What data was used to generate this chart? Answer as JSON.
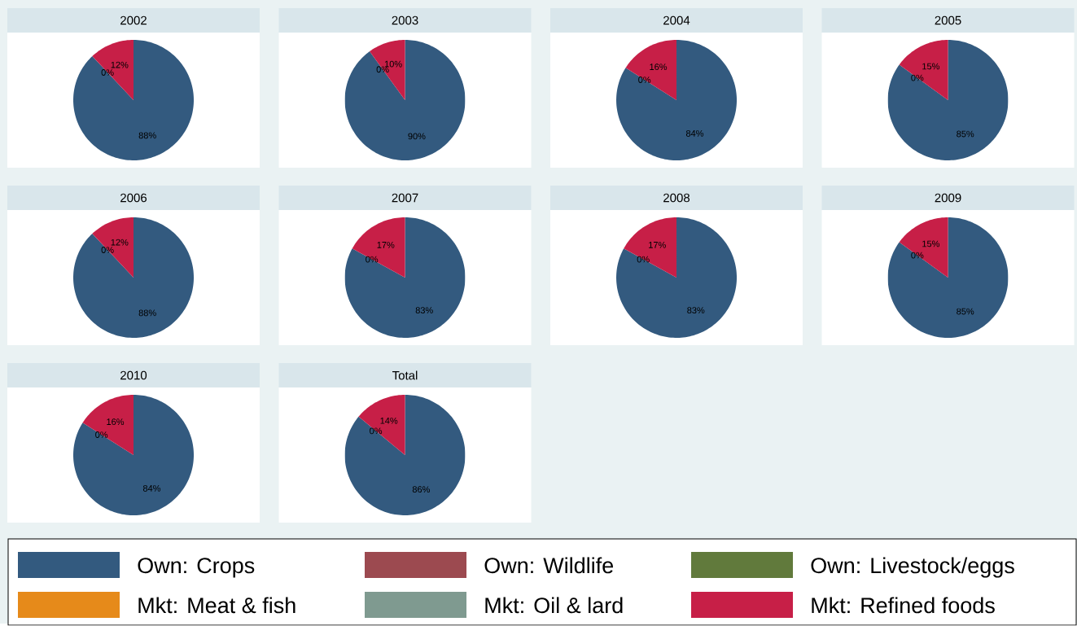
{
  "chart_data": [
    {
      "type": "pie",
      "title": "2002",
      "legend": "bottom",
      "categories": [
        "Own: Crops",
        "Own: Wildlife",
        "Own: Livestock/eggs",
        "Mkt: Meat & fish",
        "Mkt: Oil & lard",
        "Mkt: Refined foods"
      ],
      "colors": [
        "#335a7f",
        "#9c4a50",
        "#617a3c",
        "#e68a1a",
        "#7f9a90",
        "#c71f47"
      ],
      "values": [
        88,
        0,
        0,
        0,
        0,
        12
      ],
      "value_labels": [
        "88%",
        "0%",
        null,
        null,
        null,
        "12%"
      ]
    },
    {
      "type": "pie",
      "title": "2003",
      "categories": [
        null,
        null,
        null,
        null,
        null,
        null
      ],
      "colors": [
        "#335a7f",
        "#9c4a50",
        "#617a3c",
        "#e68a1a",
        "#7f9a90",
        "#c71f47"
      ],
      "values": [
        90,
        0,
        0,
        0,
        0,
        10
      ],
      "value_labels": [
        "90%",
        "0%",
        null,
        null,
        null,
        "10%"
      ]
    },
    {
      "type": "pie",
      "title": "2004",
      "categories": [
        null,
        null,
        null,
        null,
        null,
        null
      ],
      "colors": [
        "#335a7f",
        "#9c4a50",
        "#617a3c",
        "#e68a1a",
        "#7f9a90",
        "#c71f47"
      ],
      "values": [
        84,
        0,
        0,
        0,
        0,
        16
      ],
      "value_labels": [
        "84%",
        "0%",
        null,
        null,
        null,
        "16%"
      ]
    },
    {
      "type": "pie",
      "title": "2005",
      "categories": [
        null,
        null,
        null,
        null,
        null,
        null
      ],
      "colors": [
        "#335a7f",
        "#9c4a50",
        "#617a3c",
        "#e68a1a",
        "#7f9a90",
        "#c71f47"
      ],
      "values": [
        85,
        0,
        0,
        0,
        0,
        15
      ],
      "value_labels": [
        "85%",
        "0%",
        null,
        null,
        null,
        "15%"
      ]
    },
    {
      "type": "pie",
      "title": "2006",
      "categories": [
        null,
        null,
        null,
        null,
        null,
        null
      ],
      "colors": [
        "#335a7f",
        "#9c4a50",
        "#617a3c",
        "#e68a1a",
        "#7f9a90",
        "#c71f47"
      ],
      "values": [
        88,
        0,
        0,
        0,
        0,
        12
      ],
      "value_labels": [
        "88%",
        "0%",
        null,
        null,
        null,
        "12%"
      ]
    },
    {
      "type": "pie",
      "title": "2007",
      "categories": [
        null,
        null,
        null,
        null,
        null,
        null
      ],
      "colors": [
        "#335a7f",
        "#9c4a50",
        "#617a3c",
        "#e68a1a",
        "#7f9a90",
        "#c71f47"
      ],
      "values": [
        83,
        0,
        0,
        0,
        0,
        17
      ],
      "value_labels": [
        "83%",
        "0%",
        null,
        null,
        null,
        "17%"
      ]
    },
    {
      "type": "pie",
      "title": "2008",
      "categories": [
        null,
        null,
        null,
        null,
        null,
        null
      ],
      "colors": [
        "#335a7f",
        "#9c4a50",
        "#617a3c",
        "#e68a1a",
        "#7f9a90",
        "#c71f47"
      ],
      "values": [
        83,
        0,
        0,
        0,
        0,
        17
      ],
      "value_labels": [
        "83%",
        "0%",
        null,
        null,
        null,
        "17%"
      ]
    },
    {
      "type": "pie",
      "title": "2009",
      "categories": [
        null,
        null,
        null,
        null,
        null,
        null
      ],
      "colors": [
        "#335a7f",
        "#9c4a50",
        "#617a3c",
        "#e68a1a",
        "#7f9a90",
        "#c71f47"
      ],
      "values": [
        85,
        0,
        0,
        0,
        0,
        15
      ],
      "value_labels": [
        "85%",
        "0%",
        null,
        null,
        null,
        "15%"
      ]
    },
    {
      "type": "pie",
      "title": "2010",
      "categories": [
        null,
        null,
        null,
        null,
        null,
        null
      ],
      "colors": [
        "#335a7f",
        "#9c4a50",
        "#617a3c",
        "#e68a1a",
        "#7f9a90",
        "#c71f47"
      ],
      "values": [
        84,
        0,
        0,
        0,
        0,
        16
      ],
      "value_labels": [
        "84%",
        "0%",
        null,
        null,
        null,
        "16%"
      ]
    },
    {
      "type": "pie",
      "title": "Total",
      "categories": [
        null,
        null,
        null,
        null,
        null,
        null
      ],
      "colors": [
        "#335a7f",
        "#9c4a50",
        "#617a3c",
        "#e68a1a",
        "#7f9a90",
        "#c71f47"
      ],
      "values": [
        86,
        0,
        0,
        0,
        0,
        14
      ],
      "value_labels": [
        "86%",
        "0%",
        null,
        null,
        null,
        "14%"
      ]
    }
  ]
}
